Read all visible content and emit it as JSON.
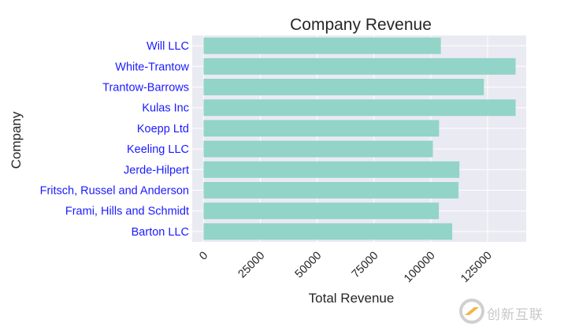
{
  "chart_data": {
    "type": "bar",
    "orientation": "horizontal",
    "title": "Company Revenue",
    "xlabel": "Total Revenue",
    "ylabel": "Company",
    "categories": [
      "Will LLC",
      "White-Trantow",
      "Trantow-Barrows",
      "Kulas Inc",
      "Koepp Ltd",
      "Keeling LLC",
      "Jerde-Hilpert",
      "Fritsch, Russel and Anderson",
      "Frami, Hills and Schmidt",
      "Barton LLC"
    ],
    "values": [
      104437,
      137352,
      123381,
      137352,
      103660,
      100934,
      112591,
      112214,
      103569,
      109438
    ],
    "xlim": [
      -5000,
      142000
    ],
    "xticks": [
      0,
      25000,
      50000,
      75000,
      100000,
      125000
    ],
    "grid": true,
    "colors": {
      "bar": "#92d4c8",
      "plot_bg": "#eaeaf2",
      "grid": "#ffffff",
      "category_label": "#1a1aff"
    }
  },
  "watermark": {
    "text": "创新互联",
    "icon": "swirl-logo-icon"
  }
}
